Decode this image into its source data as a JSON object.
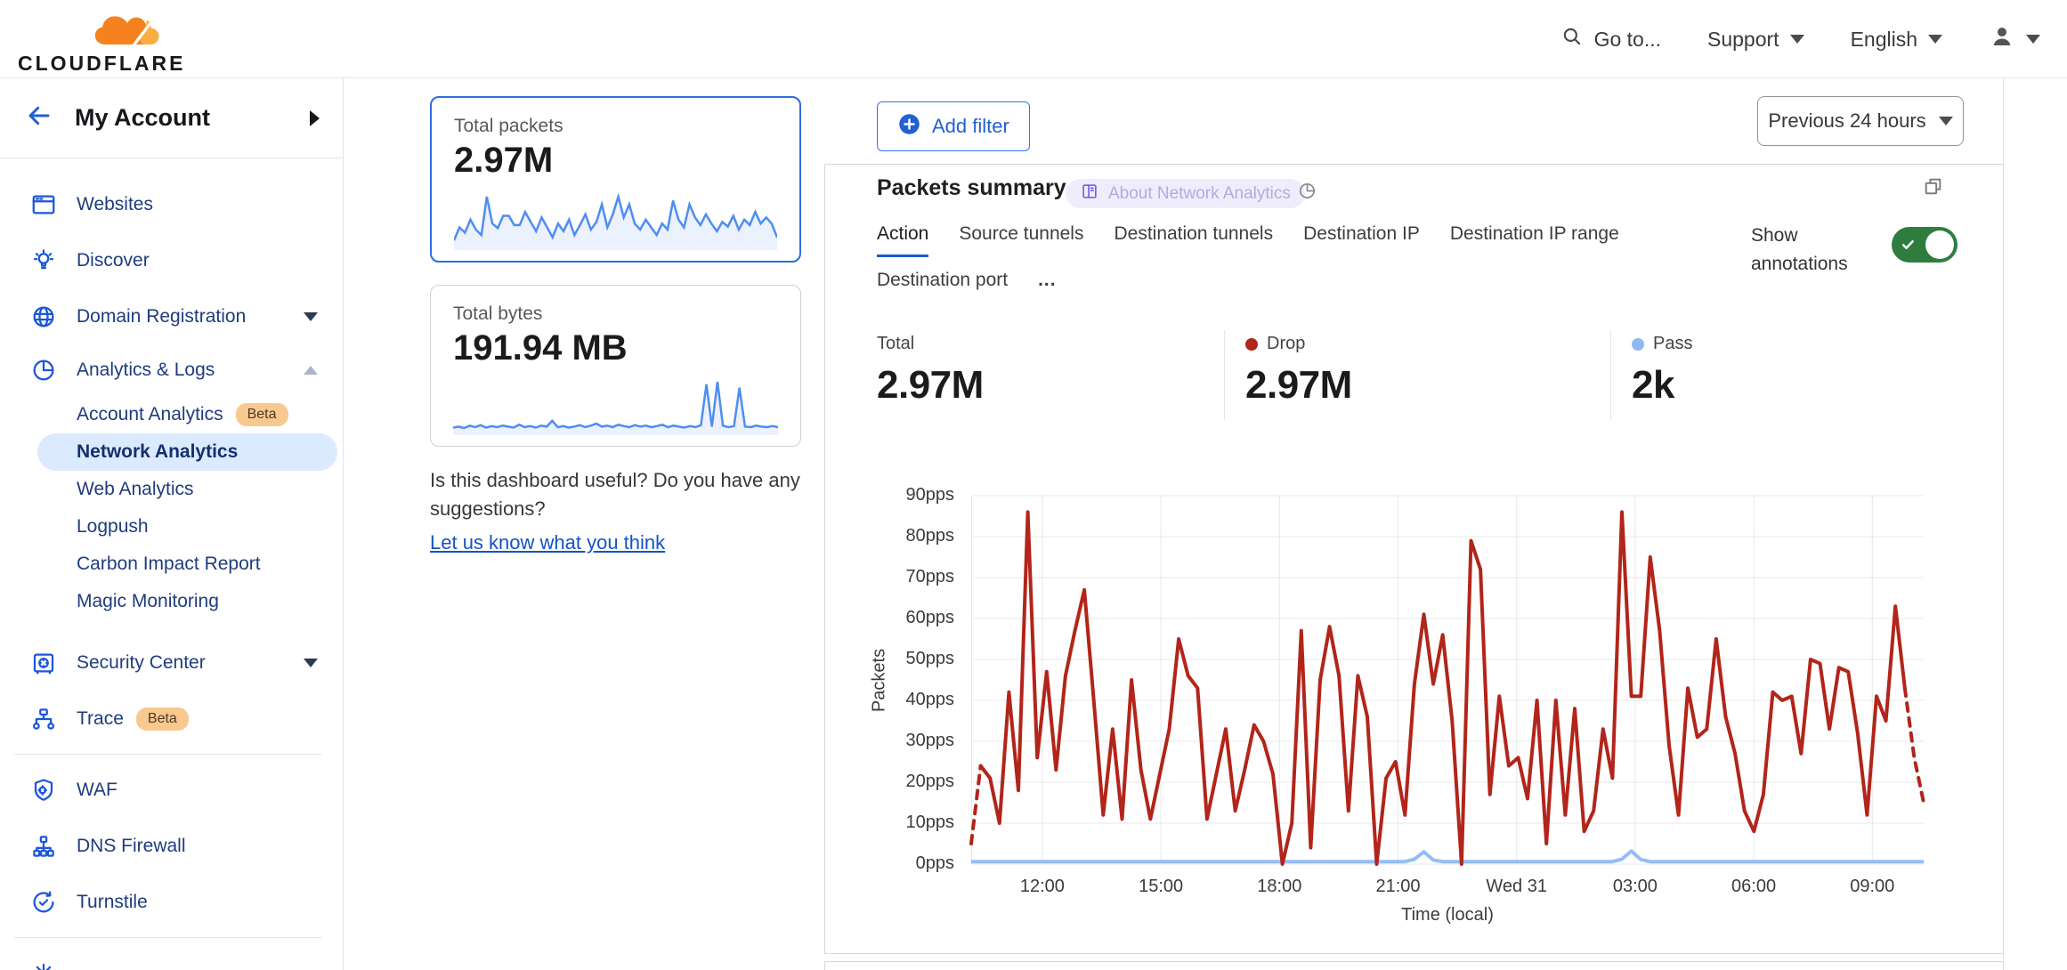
{
  "header": {
    "logo_text": "CLOUDFLARE",
    "goto": "Go to...",
    "support": "Support",
    "language": "English"
  },
  "sidebar": {
    "account_label": "My Account",
    "items": [
      {
        "label": "Websites"
      },
      {
        "label": "Discover"
      },
      {
        "label": "Domain Registration"
      },
      {
        "label": "Analytics & Logs"
      },
      {
        "label": "Account Analytics",
        "badge": "Beta"
      },
      {
        "label": "Network Analytics",
        "selected": true
      },
      {
        "label": "Web Analytics"
      },
      {
        "label": "Logpush"
      },
      {
        "label": "Carbon Impact Report"
      },
      {
        "label": "Magic Monitoring"
      },
      {
        "label": "Security Center"
      },
      {
        "label": "Trace",
        "badge": "Beta"
      },
      {
        "label": "WAF"
      },
      {
        "label": "DNS Firewall"
      },
      {
        "label": "Turnstile"
      }
    ]
  },
  "summary_cards": {
    "packets": {
      "label": "Total packets",
      "value": "2.97M"
    },
    "bytes": {
      "label": "Total bytes",
      "value": "191.94 MB"
    }
  },
  "feedback": {
    "question": "Is this dashboard useful? Do you have any suggestions?",
    "link": "Let us know what you think"
  },
  "toolbar": {
    "add_filter": "Add filter",
    "time_range": "Previous 24 hours"
  },
  "panel": {
    "title": "Packets summary",
    "badge": "About Network Analytics",
    "tabs": [
      "Action",
      "Source tunnels",
      "Destination tunnels",
      "Destination IP",
      "Destination IP range",
      "Destination port"
    ],
    "more_tabs": "...",
    "active_tab": "Action",
    "annotations_label": "Show annotations",
    "annotations_on": true,
    "stats": [
      {
        "label": "Total",
        "value": "2.97M"
      },
      {
        "label": "Drop",
        "value": "2.97M",
        "dot": "#b2251a"
      },
      {
        "label": "Pass",
        "value": "2k",
        "dot": "#8fb8f2"
      }
    ]
  },
  "chart_data": [
    {
      "type": "line",
      "title": "Packets summary",
      "xlabel": "Time (local)",
      "ylabel": "Packets",
      "y_unit": "pps",
      "ylim": [
        0,
        90
      ],
      "y_step": 10,
      "grid": true,
      "x_range": [
        10.2,
        34.3
      ],
      "x_ticks": [
        {
          "label": "12:00",
          "t": 12
        },
        {
          "label": "15:00",
          "t": 15
        },
        {
          "label": "18:00",
          "t": 18
        },
        {
          "label": "21:00",
          "t": 21
        },
        {
          "label": "Wed 31",
          "t": 24
        },
        {
          "label": "03:00",
          "t": 27
        },
        {
          "label": "06:00",
          "t": 30
        },
        {
          "label": "09:00",
          "t": 33
        }
      ],
      "series": [
        {
          "name": "Drop",
          "color": "#b2251a",
          "dashed_head": 2,
          "dashed_tail": 3,
          "values": [
            5,
            24,
            21,
            10,
            42,
            18,
            86,
            26,
            47,
            23,
            46,
            57,
            67,
            40,
            12,
            33,
            11,
            45,
            23,
            11,
            22,
            33,
            55,
            46,
            43,
            11,
            22,
            33,
            13,
            23,
            34,
            30,
            22,
            0,
            10,
            57,
            4,
            45,
            58,
            46,
            13,
            46,
            36,
            0,
            21,
            25,
            12,
            44,
            61,
            44,
            56,
            35,
            0,
            79,
            72,
            17,
            41,
            24,
            26,
            16,
            40,
            5,
            40,
            12,
            38,
            8,
            13,
            33,
            21,
            86,
            41,
            41,
            75,
            57,
            29,
            12,
            43,
            31,
            33,
            55,
            36,
            27,
            13,
            8,
            17,
            42,
            40,
            41,
            27,
            50,
            49,
            33,
            48,
            47,
            32,
            12,
            41,
            35,
            63,
            43,
            26,
            15
          ]
        },
        {
          "name": "Pass",
          "color": "#94bdf7",
          "values": [
            0.6,
            0.6,
            0.6,
            0.6,
            0.6,
            0.6,
            0.6,
            0.6,
            0.6,
            0.6,
            0.6,
            0.6,
            0.6,
            0.6,
            0.6,
            0.6,
            0.6,
            0.6,
            0.6,
            0.6,
            0.6,
            0.6,
            0.6,
            0.6,
            0.6,
            0.6,
            0.6,
            0.6,
            0.6,
            0.6,
            0.6,
            0.6,
            0.6,
            0.6,
            0.6,
            0.6,
            0.6,
            0.6,
            0.6,
            0.6,
            0.6,
            0.6,
            0.6,
            0.6,
            0.6,
            0.6,
            0.6,
            1.2,
            3,
            1,
            0.6,
            0.6,
            0.6,
            0.6,
            0.6,
            0.6,
            0.6,
            0.6,
            0.6,
            0.6,
            0.6,
            0.6,
            0.6,
            0.6,
            0.6,
            0.6,
            0.6,
            0.6,
            0.6,
            1.2,
            3.2,
            1.1,
            0.6,
            0.6,
            0.6,
            0.6,
            0.6,
            0.6,
            0.6,
            0.6,
            0.6,
            0.6,
            0.6,
            0.6,
            0.6,
            0.6,
            0.6,
            0.6,
            0.6,
            0.6,
            0.6,
            0.6,
            0.6,
            0.6,
            0.6,
            0.6,
            0.6,
            0.6,
            0.6,
            0.6,
            0.6,
            0.6
          ]
        }
      ]
    },
    {
      "type": "area",
      "title": "Total packets sparkline",
      "values": [
        8,
        25,
        18,
        35,
        22,
        15,
        65,
        30,
        24,
        40,
        40,
        28,
        28,
        45,
        32,
        20,
        38,
        25,
        12,
        30,
        20,
        35,
        15,
        28,
        42,
        22,
        32,
        55,
        25,
        42,
        65,
        38,
        55,
        30,
        22,
        35,
        25,
        15,
        30,
        22,
        60,
        35,
        25,
        55,
        38,
        28,
        42,
        30,
        20,
        32,
        26,
        40,
        22,
        35,
        28,
        45,
        30,
        38,
        30,
        12
      ]
    },
    {
      "type": "area",
      "title": "Total bytes sparkline",
      "values": [
        8,
        10,
        7,
        12,
        9,
        13,
        8,
        11,
        9,
        12,
        10,
        8,
        14,
        9,
        11,
        8,
        12,
        10,
        22,
        9,
        11,
        8,
        10,
        13,
        9,
        12,
        16,
        10,
        12,
        9,
        14,
        11,
        9,
        13,
        10,
        12,
        9,
        11,
        14,
        9,
        12,
        10,
        8,
        11,
        9,
        13,
        95,
        10,
        100,
        12,
        9,
        11,
        88,
        10,
        9,
        12,
        10,
        9,
        11,
        9
      ]
    }
  ],
  "colors": {
    "accent_blue": "#2260d3",
    "drop_red": "#b2251a",
    "pass_blue": "#94bdf7",
    "toggle_green": "#2e7d3e",
    "nav_icon_blue": "#1a56db",
    "selected_item_bg": "#dbeafe",
    "beta_badge_bg": "#f8c98f",
    "about_badge_bg": "#efedfb"
  }
}
